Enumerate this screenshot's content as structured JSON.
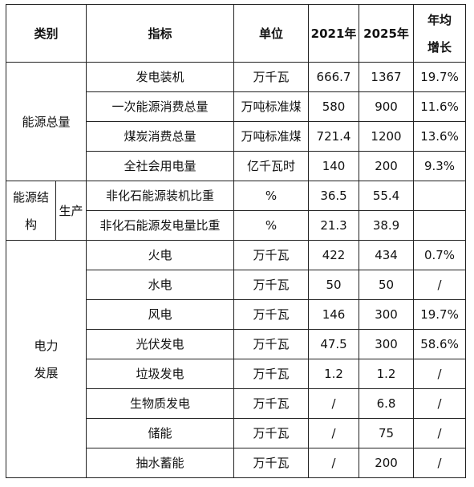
{
  "headers": {
    "category": "类别",
    "indicator": "指标",
    "unit": "单位",
    "y2021": "2021年",
    "y2025": "2025年",
    "growth_line1": "年均",
    "growth_line2": "增长"
  },
  "groups": {
    "energy_total": "能源总量",
    "structure_line1": "能源结",
    "structure_line2": "构",
    "production": "生产",
    "power_line1": "电力",
    "power_line2": "发展"
  },
  "rows": [
    {
      "indicator": "发电装机",
      "unit": "万千瓦",
      "y2021": "666.7",
      "y2025": "1367",
      "growth": "19.7%"
    },
    {
      "indicator": "一次能源消费总量",
      "unit": "万吨标准煤",
      "y2021": "580",
      "y2025": "900",
      "growth": "11.6%"
    },
    {
      "indicator": "煤炭消费总量",
      "unit": "万吨标准煤",
      "y2021": "721.4",
      "y2025": "1200",
      "growth": "13.6%"
    },
    {
      "indicator": "全社会用电量",
      "unit": "亿千瓦时",
      "y2021": "140",
      "y2025": "200",
      "growth": "9.3%"
    },
    {
      "indicator": "非化石能源装机比重",
      "unit": "%",
      "y2021": "36.5",
      "y2025": "55.4",
      "growth": ""
    },
    {
      "indicator": "非化石能源发电量比重",
      "unit": "%",
      "y2021": "21.3",
      "y2025": "38.9",
      "growth": ""
    },
    {
      "indicator": "火电",
      "unit": "万千瓦",
      "y2021": "422",
      "y2025": "434",
      "growth": "0.7%"
    },
    {
      "indicator": "水电",
      "unit": "万千瓦",
      "y2021": "50",
      "y2025": "50",
      "growth": "/"
    },
    {
      "indicator": "风电",
      "unit": "万千瓦",
      "y2021": "146",
      "y2025": "300",
      "growth": "19.7%"
    },
    {
      "indicator": "光伏发电",
      "unit": "万千瓦",
      "y2021": "47.5",
      "y2025": "300",
      "growth": "58.6%"
    },
    {
      "indicator": "垃圾发电",
      "unit": "万千瓦",
      "y2021": "1.2",
      "y2025": "1.2",
      "growth": "/"
    },
    {
      "indicator": "生物质发电",
      "unit": "万千瓦",
      "y2021": "/",
      "y2025": "6.8",
      "growth": "/"
    },
    {
      "indicator": "储能",
      "unit": "万千瓦",
      "y2021": "/",
      "y2025": "75",
      "growth": "/"
    },
    {
      "indicator": "抽水蓄能",
      "unit": "万千瓦",
      "y2021": "/",
      "y2025": "200",
      "growth": "/"
    }
  ]
}
